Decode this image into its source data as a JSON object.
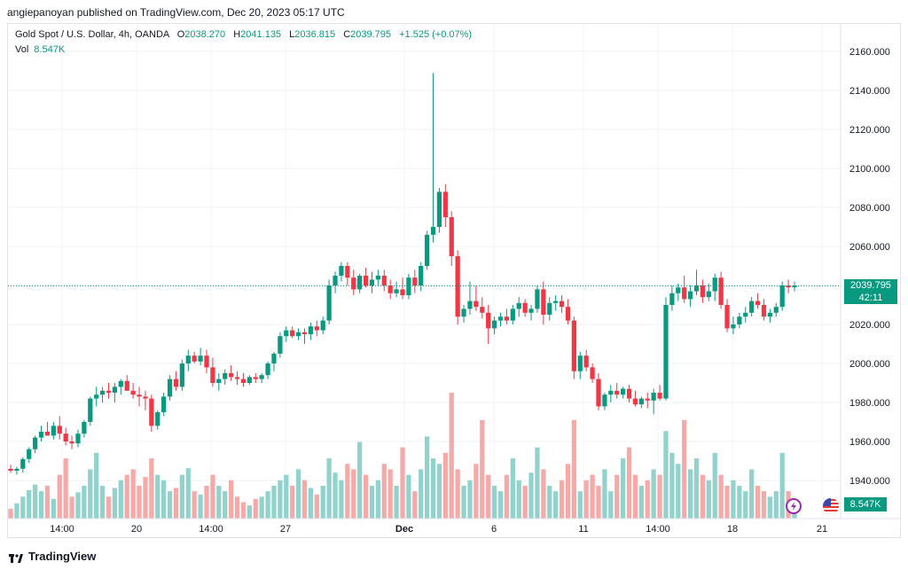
{
  "header": {
    "published": "angiepanoyan published on TradingView.com, Dec 20, 2023 05:17 UTC"
  },
  "legend": {
    "symbol": "Gold Spot / U.S. Dollar, 4h, OANDA",
    "o_label": "O",
    "o_value": "2038.270",
    "h_label": "H",
    "h_value": "2041.135",
    "l_label": "L",
    "l_value": "2036.815",
    "c_label": "C",
    "c_value": "2039.795",
    "change": "+1.525 (+0.07%)",
    "vol_label": "Vol",
    "vol_value": "8.547K"
  },
  "last_price": {
    "price": "2039.795",
    "countdown": "42:11"
  },
  "volume_tag": "8.547K",
  "footer": {
    "brand": "TradingView"
  },
  "icons": {
    "lightning": "lightning-icon",
    "flag": "us-flag-icon",
    "logo": "tradingview-logo-icon"
  },
  "colors": {
    "up": "#089981",
    "down": "#f23645",
    "up_vol": "#92d2cc",
    "down_vol": "#f7a9a7",
    "grid": "#f0f3fa"
  },
  "chart_data": {
    "type": "candlestick",
    "title": "Gold Spot / U.S. Dollar, 4h, OANDA",
    "ylim": [
      1930,
      2165
    ],
    "y_ticks": [
      "2160.000",
      "2140.000",
      "2120.000",
      "2100.000",
      "2080.000",
      "2060.000",
      "2040.000",
      "2020.000",
      "2000.000",
      "1980.000",
      "1960.000",
      "1940.000"
    ],
    "x_ticks": [
      "14:00",
      "20",
      "14:00",
      "27",
      "Dec",
      "6",
      "11",
      "14:00",
      "18",
      "21"
    ],
    "grid": true,
    "series": [
      {
        "o": 1946,
        "h": 1948,
        "l": 1944,
        "c": 1945,
        "v": 9
      },
      {
        "o": 1945,
        "h": 1947,
        "l": 1943,
        "c": 1946,
        "v": 14
      },
      {
        "o": 1946,
        "h": 1952,
        "l": 1944,
        "c": 1951,
        "v": 20
      },
      {
        "o": 1951,
        "h": 1957,
        "l": 1949,
        "c": 1956,
        "v": 26
      },
      {
        "o": 1956,
        "h": 1963,
        "l": 1954,
        "c": 1962,
        "v": 31
      },
      {
        "o": 1962,
        "h": 1968,
        "l": 1960,
        "c": 1965,
        "v": 25
      },
      {
        "o": 1965,
        "h": 1970,
        "l": 1963,
        "c": 1963,
        "v": 30
      },
      {
        "o": 1963,
        "h": 1970,
        "l": 1961,
        "c": 1968,
        "v": 18
      },
      {
        "o": 1968,
        "h": 1973,
        "l": 1961,
        "c": 1964,
        "v": 40
      },
      {
        "o": 1964,
        "h": 1967,
        "l": 1958,
        "c": 1960,
        "v": 55
      },
      {
        "o": 1960,
        "h": 1963,
        "l": 1956,
        "c": 1959,
        "v": 20
      },
      {
        "o": 1959,
        "h": 1966,
        "l": 1957,
        "c": 1964,
        "v": 24
      },
      {
        "o": 1964,
        "h": 1971,
        "l": 1962,
        "c": 1970,
        "v": 30
      },
      {
        "o": 1970,
        "h": 1983,
        "l": 1968,
        "c": 1982,
        "v": 45
      },
      {
        "o": 1982,
        "h": 1988,
        "l": 1978,
        "c": 1984,
        "v": 60
      },
      {
        "o": 1984,
        "h": 1988,
        "l": 1980,
        "c": 1986,
        "v": 30
      },
      {
        "o": 1986,
        "h": 1990,
        "l": 1982,
        "c": 1985,
        "v": 20
      },
      {
        "o": 1985,
        "h": 1990,
        "l": 1980,
        "c": 1988,
        "v": 28
      },
      {
        "o": 1988,
        "h": 1992,
        "l": 1984,
        "c": 1991,
        "v": 35
      },
      {
        "o": 1991,
        "h": 1994,
        "l": 1986,
        "c": 1986,
        "v": 40
      },
      {
        "o": 1986,
        "h": 1990,
        "l": 1982,
        "c": 1984,
        "v": 45
      },
      {
        "o": 1984,
        "h": 1988,
        "l": 1978,
        "c": 1983,
        "v": 30
      },
      {
        "o": 1983,
        "h": 1986,
        "l": 1976,
        "c": 1982,
        "v": 38
      },
      {
        "o": 1982,
        "h": 1984,
        "l": 1965,
        "c": 1968,
        "v": 55
      },
      {
        "o": 1968,
        "h": 1976,
        "l": 1966,
        "c": 1975,
        "v": 40
      },
      {
        "o": 1975,
        "h": 1985,
        "l": 1973,
        "c": 1983,
        "v": 35
      },
      {
        "o": 1983,
        "h": 1994,
        "l": 1981,
        "c": 1992,
        "v": 25
      },
      {
        "o": 1992,
        "h": 1996,
        "l": 1986,
        "c": 1988,
        "v": 28
      },
      {
        "o": 1988,
        "h": 2002,
        "l": 1986,
        "c": 2000,
        "v": 40
      },
      {
        "o": 2000,
        "h": 2007,
        "l": 1996,
        "c": 2004,
        "v": 46
      },
      {
        "o": 2004,
        "h": 2006,
        "l": 2000,
        "c": 2001,
        "v": 25
      },
      {
        "o": 2001,
        "h": 2008,
        "l": 1999,
        "c": 2004,
        "v": 22
      },
      {
        "o": 2004,
        "h": 2007,
        "l": 1995,
        "c": 1998,
        "v": 30
      },
      {
        "o": 1998,
        "h": 2003,
        "l": 1988,
        "c": 1990,
        "v": 40
      },
      {
        "o": 1990,
        "h": 1995,
        "l": 1986,
        "c": 1992,
        "v": 30
      },
      {
        "o": 1992,
        "h": 1997,
        "l": 1989,
        "c": 1995,
        "v": 25
      },
      {
        "o": 1995,
        "h": 1999,
        "l": 1991,
        "c": 1993,
        "v": 35
      },
      {
        "o": 1993,
        "h": 1996,
        "l": 1989,
        "c": 1992,
        "v": 20
      },
      {
        "o": 1992,
        "h": 1995,
        "l": 1988,
        "c": 1990,
        "v": 15
      },
      {
        "o": 1990,
        "h": 1994,
        "l": 1989,
        "c": 1993,
        "v": 12
      },
      {
        "o": 1993,
        "h": 1995,
        "l": 1990,
        "c": 1992,
        "v": 18
      },
      {
        "o": 1992,
        "h": 1995,
        "l": 1990,
        "c": 1994,
        "v": 20
      },
      {
        "o": 1994,
        "h": 2001,
        "l": 1992,
        "c": 2000,
        "v": 25
      },
      {
        "o": 2000,
        "h": 2006,
        "l": 1996,
        "c": 2005,
        "v": 30
      },
      {
        "o": 2005,
        "h": 2016,
        "l": 2003,
        "c": 2014,
        "v": 35
      },
      {
        "o": 2014,
        "h": 2019,
        "l": 2011,
        "c": 2017,
        "v": 40
      },
      {
        "o": 2017,
        "h": 2019,
        "l": 2013,
        "c": 2014,
        "v": 30
      },
      {
        "o": 2014,
        "h": 2018,
        "l": 2012,
        "c": 2016,
        "v": 45
      },
      {
        "o": 2016,
        "h": 2018,
        "l": 2010,
        "c": 2015,
        "v": 35
      },
      {
        "o": 2015,
        "h": 2021,
        "l": 2012,
        "c": 2019,
        "v": 28
      },
      {
        "o": 2019,
        "h": 2022,
        "l": 2014,
        "c": 2017,
        "v": 22
      },
      {
        "o": 2017,
        "h": 2024,
        "l": 2015,
        "c": 2022,
        "v": 30
      },
      {
        "o": 2022,
        "h": 2043,
        "l": 2020,
        "c": 2040,
        "v": 55
      },
      {
        "o": 2040,
        "h": 2047,
        "l": 2036,
        "c": 2045,
        "v": 42
      },
      {
        "o": 2045,
        "h": 2052,
        "l": 2042,
        "c": 2050,
        "v": 35
      },
      {
        "o": 2050,
        "h": 2052,
        "l": 2040,
        "c": 2044,
        "v": 50
      },
      {
        "o": 2044,
        "h": 2048,
        "l": 2035,
        "c": 2038,
        "v": 45
      },
      {
        "o": 2038,
        "h": 2046,
        "l": 2036,
        "c": 2045,
        "v": 70
      },
      {
        "o": 2045,
        "h": 2049,
        "l": 2039,
        "c": 2040,
        "v": 40
      },
      {
        "o": 2040,
        "h": 2047,
        "l": 2036,
        "c": 2043,
        "v": 30
      },
      {
        "o": 2043,
        "h": 2048,
        "l": 2040,
        "c": 2045,
        "v": 35
      },
      {
        "o": 2045,
        "h": 2048,
        "l": 2037,
        "c": 2040,
        "v": 50
      },
      {
        "o": 2040,
        "h": 2043,
        "l": 2033,
        "c": 2036,
        "v": 45
      },
      {
        "o": 2036,
        "h": 2042,
        "l": 2034,
        "c": 2038,
        "v": 30
      },
      {
        "o": 2038,
        "h": 2044,
        "l": 2033,
        "c": 2035,
        "v": 65
      },
      {
        "o": 2035,
        "h": 2046,
        "l": 2033,
        "c": 2044,
        "v": 40
      },
      {
        "o": 2044,
        "h": 2048,
        "l": 2036,
        "c": 2040,
        "v": 25
      },
      {
        "o": 2040,
        "h": 2052,
        "l": 2037,
        "c": 2050,
        "v": 45
      },
      {
        "o": 2050,
        "h": 2068,
        "l": 2048,
        "c": 2066,
        "v": 75
      },
      {
        "o": 2066,
        "h": 2149,
        "l": 2062,
        "c": 2070,
        "v": 55
      },
      {
        "o": 2070,
        "h": 2090,
        "l": 2067,
        "c": 2088,
        "v": 50
      },
      {
        "o": 2088,
        "h": 2092,
        "l": 2070,
        "c": 2075,
        "v": 60
      },
      {
        "o": 2075,
        "h": 2078,
        "l": 2050,
        "c": 2055,
        "v": 115
      },
      {
        "o": 2055,
        "h": 2058,
        "l": 2020,
        "c": 2024,
        "v": 45
      },
      {
        "o": 2024,
        "h": 2030,
        "l": 2021,
        "c": 2028,
        "v": 30
      },
      {
        "o": 2028,
        "h": 2042,
        "l": 2025,
        "c": 2032,
        "v": 35
      },
      {
        "o": 2032,
        "h": 2040,
        "l": 2027,
        "c": 2029,
        "v": 50
      },
      {
        "o": 2029,
        "h": 2034,
        "l": 2023,
        "c": 2026,
        "v": 90
      },
      {
        "o": 2026,
        "h": 2030,
        "l": 2010,
        "c": 2018,
        "v": 40
      },
      {
        "o": 2018,
        "h": 2024,
        "l": 2015,
        "c": 2022,
        "v": 30
      },
      {
        "o": 2022,
        "h": 2026,
        "l": 2019,
        "c": 2024,
        "v": 25
      },
      {
        "o": 2024,
        "h": 2028,
        "l": 2020,
        "c": 2022,
        "v": 40
      },
      {
        "o": 2022,
        "h": 2030,
        "l": 2020,
        "c": 2028,
        "v": 55
      },
      {
        "o": 2028,
        "h": 2034,
        "l": 2024,
        "c": 2031,
        "v": 35
      },
      {
        "o": 2031,
        "h": 2033,
        "l": 2024,
        "c": 2026,
        "v": 30
      },
      {
        "o": 2026,
        "h": 2030,
        "l": 2022,
        "c": 2028,
        "v": 42
      },
      {
        "o": 2028,
        "h": 2040,
        "l": 2026,
        "c": 2038,
        "v": 65
      },
      {
        "o": 2038,
        "h": 2042,
        "l": 2020,
        "c": 2025,
        "v": 45
      },
      {
        "o": 2025,
        "h": 2034,
        "l": 2022,
        "c": 2031,
        "v": 30
      },
      {
        "o": 2031,
        "h": 2035,
        "l": 2027,
        "c": 2032,
        "v": 25
      },
      {
        "o": 2032,
        "h": 2035,
        "l": 2026,
        "c": 2029,
        "v": 35
      },
      {
        "o": 2029,
        "h": 2033,
        "l": 2020,
        "c": 2022,
        "v": 50
      },
      {
        "o": 2022,
        "h": 2024,
        "l": 1992,
        "c": 1996,
        "v": 90
      },
      {
        "o": 1996,
        "h": 2006,
        "l": 1992,
        "c": 2004,
        "v": 25
      },
      {
        "o": 2004,
        "h": 2007,
        "l": 1996,
        "c": 1998,
        "v": 35
      },
      {
        "o": 1998,
        "h": 2000,
        "l": 1990,
        "c": 1992,
        "v": 40
      },
      {
        "o": 1992,
        "h": 1995,
        "l": 1976,
        "c": 1978,
        "v": 30
      },
      {
        "o": 1978,
        "h": 1985,
        "l": 1976,
        "c": 1984,
        "v": 45
      },
      {
        "o": 1984,
        "h": 1989,
        "l": 1980,
        "c": 1986,
        "v": 25
      },
      {
        "o": 1986,
        "h": 1990,
        "l": 1982,
        "c": 1984,
        "v": 40
      },
      {
        "o": 1984,
        "h": 1988,
        "l": 1982,
        "c": 1987,
        "v": 55
      },
      {
        "o": 1987,
        "h": 1989,
        "l": 1980,
        "c": 1982,
        "v": 65
      },
      {
        "o": 1982,
        "h": 1986,
        "l": 1978,
        "c": 1979,
        "v": 40
      },
      {
        "o": 1979,
        "h": 1983,
        "l": 1977,
        "c": 1982,
        "v": 30
      },
      {
        "o": 1982,
        "h": 1985,
        "l": 1977,
        "c": 1981,
        "v": 35
      },
      {
        "o": 1981,
        "h": 1987,
        "l": 1974,
        "c": 1985,
        "v": 45
      },
      {
        "o": 1985,
        "h": 1989,
        "l": 1981,
        "c": 1982,
        "v": 40
      },
      {
        "o": 1982,
        "h": 2034,
        "l": 1981,
        "c": 2030,
        "v": 80
      },
      {
        "o": 2030,
        "h": 2040,
        "l": 2027,
        "c": 2036,
        "v": 60
      },
      {
        "o": 2036,
        "h": 2041,
        "l": 2032,
        "c": 2039,
        "v": 50
      },
      {
        "o": 2039,
        "h": 2045,
        "l": 2031,
        "c": 2033,
        "v": 90
      },
      {
        "o": 2033,
        "h": 2040,
        "l": 2029,
        "c": 2037,
        "v": 45
      },
      {
        "o": 2037,
        "h": 2048,
        "l": 2035,
        "c": 2040,
        "v": 55
      },
      {
        "o": 2040,
        "h": 2043,
        "l": 2031,
        "c": 2034,
        "v": 40
      },
      {
        "o": 2034,
        "h": 2041,
        "l": 2032,
        "c": 2037,
        "v": 35
      },
      {
        "o": 2037,
        "h": 2046,
        "l": 2032,
        "c": 2044,
        "v": 60
      },
      {
        "o": 2044,
        "h": 2047,
        "l": 2028,
        "c": 2030,
        "v": 40
      },
      {
        "o": 2030,
        "h": 2033,
        "l": 2016,
        "c": 2018,
        "v": 30
      },
      {
        "o": 2018,
        "h": 2024,
        "l": 2015,
        "c": 2020,
        "v": 35
      },
      {
        "o": 2020,
        "h": 2026,
        "l": 2018,
        "c": 2024,
        "v": 30
      },
      {
        "o": 2024,
        "h": 2029,
        "l": 2021,
        "c": 2026,
        "v": 25
      },
      {
        "o": 2026,
        "h": 2034,
        "l": 2024,
        "c": 2032,
        "v": 45
      },
      {
        "o": 2032,
        "h": 2036,
        "l": 2028,
        "c": 2030,
        "v": 30
      },
      {
        "o": 2030,
        "h": 2033,
        "l": 2022,
        "c": 2024,
        "v": 25
      },
      {
        "o": 2024,
        "h": 2028,
        "l": 2021,
        "c": 2026,
        "v": 20
      },
      {
        "o": 2026,
        "h": 2031,
        "l": 2024,
        "c": 2029,
        "v": 25
      },
      {
        "o": 2029,
        "h": 2042,
        "l": 2027,
        "c": 2040,
        "v": 60
      },
      {
        "o": 2040,
        "h": 2043,
        "l": 2036,
        "c": 2039,
        "v": 25
      },
      {
        "o": 2039,
        "h": 2042,
        "l": 2037,
        "c": 2040,
        "v": 15
      }
    ]
  }
}
